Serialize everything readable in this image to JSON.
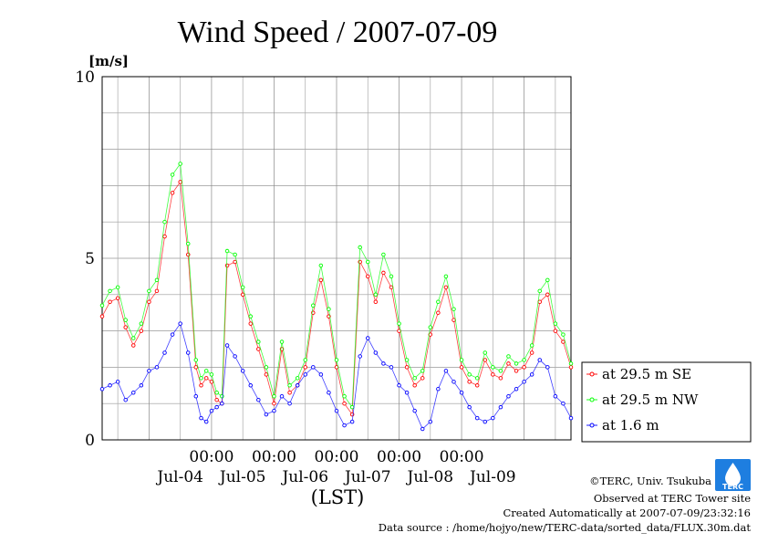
{
  "chart_data": {
    "type": "line",
    "title": "Wind Speed / 2007-07-09",
    "ylabel": "[m/s]",
    "xlabel": "(LST)",
    "ylim": [
      0,
      10
    ],
    "y_ticks": [
      "0",
      "5",
      "10"
    ],
    "x_range_hours": [
      -42,
      138
    ],
    "x_midnight_labels": [
      "00:00",
      "00:00",
      "00:00",
      "00:00",
      "00:00"
    ],
    "x_date_labels": [
      "Jul-04",
      "Jul-05",
      "Jul-06",
      "Jul-07",
      "Jul-08",
      "Jul-09"
    ],
    "x_unit": "hours since 2007-07-04 00:00 LST",
    "grid": true,
    "legend_position": "bottom-right",
    "series": [
      {
        "name": "at 29.5 m SE",
        "color": "#ff0000",
        "x": [
          -42,
          -39,
          -36,
          -33,
          -30,
          -27,
          -24,
          -21,
          -18,
          -15,
          -12,
          -9,
          -6,
          -4,
          -2,
          0,
          2,
          4,
          6,
          9,
          12,
          15,
          18,
          21,
          24,
          27,
          30,
          33,
          36,
          39,
          42,
          45,
          48,
          51,
          54,
          57,
          60,
          63,
          66,
          69,
          72,
          75,
          78,
          81,
          84,
          87,
          90,
          93,
          96,
          99,
          102,
          105,
          108,
          111,
          114,
          117,
          120,
          123,
          126,
          129,
          132,
          135,
          138
        ],
        "y": [
          3.4,
          3.8,
          3.9,
          3.1,
          2.6,
          3.0,
          3.8,
          4.1,
          5.6,
          6.8,
          7.1,
          5.1,
          2.0,
          1.5,
          1.7,
          1.6,
          1.1,
          1.0,
          4.8,
          4.9,
          4.0,
          3.2,
          2.5,
          1.8,
          1.0,
          2.5,
          1.3,
          1.5,
          2.0,
          3.5,
          4.4,
          3.4,
          2.0,
          1.0,
          0.7,
          4.9,
          4.5,
          3.8,
          4.6,
          4.2,
          3.0,
          2.0,
          1.5,
          1.7,
          2.9,
          3.5,
          4.2,
          3.3,
          2.0,
          1.6,
          1.5,
          2.2,
          1.8,
          1.7,
          2.1,
          1.9,
          2.0,
          2.4,
          3.8,
          4.0,
          3.0,
          2.7,
          2.0
        ]
      },
      {
        "name": "at 29.5 m NW",
        "color": "#00ff00",
        "x": [
          -42,
          -39,
          -36,
          -33,
          -30,
          -27,
          -24,
          -21,
          -18,
          -15,
          -12,
          -9,
          -6,
          -4,
          -2,
          0,
          2,
          4,
          6,
          9,
          12,
          15,
          18,
          21,
          24,
          27,
          30,
          33,
          36,
          39,
          42,
          45,
          48,
          51,
          54,
          57,
          60,
          63,
          66,
          69,
          72,
          75,
          78,
          81,
          84,
          87,
          90,
          93,
          96,
          99,
          102,
          105,
          108,
          111,
          114,
          117,
          120,
          123,
          126,
          129,
          132,
          135,
          138
        ],
        "y": [
          3.7,
          4.1,
          4.2,
          3.3,
          2.8,
          3.2,
          4.1,
          4.4,
          6.0,
          7.3,
          7.6,
          5.4,
          2.2,
          1.7,
          1.9,
          1.8,
          1.3,
          1.2,
          5.2,
          5.1,
          4.2,
          3.4,
          2.7,
          2.0,
          1.2,
          2.7,
          1.5,
          1.7,
          2.2,
          3.7,
          4.8,
          3.6,
          2.2,
          1.2,
          0.9,
          5.3,
          4.9,
          4.0,
          5.1,
          4.5,
          3.2,
          2.2,
          1.7,
          1.9,
          3.1,
          3.8,
          4.5,
          3.6,
          2.2,
          1.8,
          1.7,
          2.4,
          2.0,
          1.9,
          2.3,
          2.1,
          2.2,
          2.6,
          4.1,
          4.4,
          3.2,
          2.9,
          2.1
        ]
      },
      {
        "name": "at 1.6 m",
        "color": "#0000ff",
        "x": [
          -42,
          -39,
          -36,
          -33,
          -30,
          -27,
          -24,
          -21,
          -18,
          -15,
          -12,
          -9,
          -6,
          -4,
          -2,
          0,
          2,
          4,
          6,
          9,
          12,
          15,
          18,
          21,
          24,
          27,
          30,
          33,
          36,
          39,
          42,
          45,
          48,
          51,
          54,
          57,
          60,
          63,
          66,
          69,
          72,
          75,
          78,
          81,
          84,
          87,
          90,
          93,
          96,
          99,
          102,
          105,
          108,
          111,
          114,
          117,
          120,
          123,
          126,
          129,
          132,
          135,
          138
        ],
        "y": [
          1.4,
          1.5,
          1.6,
          1.1,
          1.3,
          1.5,
          1.9,
          2.0,
          2.4,
          2.9,
          3.2,
          2.4,
          1.2,
          0.6,
          0.5,
          0.8,
          0.9,
          1.0,
          2.6,
          2.3,
          1.9,
          1.5,
          1.1,
          0.7,
          0.8,
          1.2,
          1.0,
          1.5,
          1.8,
          2.0,
          1.8,
          1.3,
          0.8,
          0.4,
          0.5,
          2.3,
          2.8,
          2.4,
          2.1,
          2.0,
          1.5,
          1.3,
          0.8,
          0.3,
          0.5,
          1.4,
          1.9,
          1.6,
          1.3,
          0.9,
          0.6,
          0.5,
          0.6,
          0.9,
          1.2,
          1.4,
          1.6,
          1.8,
          2.2,
          2.0,
          1.2,
          1.0,
          0.6
        ]
      }
    ]
  },
  "logo": {
    "text": "TERC"
  },
  "credits": [
    "©TERC, Univ. Tsukuba",
    "Observed at TERC Tower site",
    "Created Automatically at 2007-07-09/23:32:16",
    "Data source : /home/hojyo/new/TERC-data/sorted_data/FLUX.30m.dat"
  ]
}
